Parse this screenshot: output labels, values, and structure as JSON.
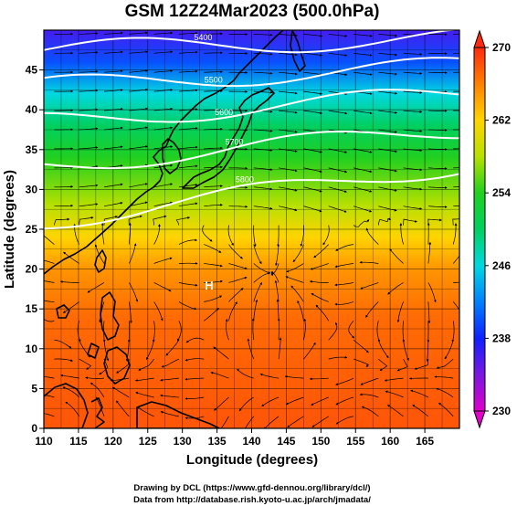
{
  "title": "GSM 12Z24Mar2023 (500.0hPa)",
  "x_axis": {
    "label": "Longitude (degrees)",
    "range": [
      110,
      170
    ],
    "ticks": [
      "110",
      "115",
      "120",
      "125",
      "130",
      "135",
      "140",
      "145",
      "150",
      "155",
      "160",
      "165"
    ]
  },
  "y_axis": {
    "label": "Latitude  (degrees)",
    "range": [
      0,
      50
    ],
    "ticks": [
      "0",
      "5",
      "10",
      "15",
      "20",
      "25",
      "30",
      "35",
      "40",
      "45"
    ]
  },
  "colorbar": {
    "range": [
      230,
      270
    ],
    "labels": [
      "270",
      "262",
      "254",
      "246",
      "238",
      "230"
    ],
    "stops": [
      {
        "v": 230,
        "c": "#e000c8"
      },
      {
        "v": 234,
        "c": "#7a18e0"
      },
      {
        "v": 238,
        "c": "#1020ff"
      },
      {
        "v": 242,
        "c": "#0080ff"
      },
      {
        "v": 246,
        "c": "#00d8e0"
      },
      {
        "v": 250,
        "c": "#00d060"
      },
      {
        "v": 254,
        "c": "#20d020"
      },
      {
        "v": 258,
        "c": "#b8e000"
      },
      {
        "v": 262,
        "c": "#ffd400"
      },
      {
        "v": 266,
        "c": "#ff8000"
      },
      {
        "v": 270,
        "c": "#ff2a10"
      }
    ]
  },
  "temperature_bands": [
    {
      "lat": 0,
      "v": 268
    },
    {
      "lat": 14,
      "v": 267
    },
    {
      "lat": 20,
      "v": 265
    },
    {
      "lat": 24,
      "v": 262
    },
    {
      "lat": 28,
      "v": 258
    },
    {
      "lat": 34,
      "v": 254
    },
    {
      "lat": 38,
      "v": 250
    },
    {
      "lat": 42,
      "v": 246
    },
    {
      "lat": 46,
      "v": 240
    },
    {
      "lat": 50,
      "v": 236
    }
  ],
  "height_contours": [
    {
      "label": "5400",
      "lat_west": 47.5,
      "lat_east": 49.0
    },
    {
      "label": "5500",
      "lat_west": 43.0,
      "lat_east": 45.5
    },
    {
      "label": "5600",
      "lat_west": 38.5,
      "lat_east": 42.0
    },
    {
      "label": "5700",
      "lat_west": 33.0,
      "lat_east": 37.5
    },
    {
      "label": "5800",
      "lat_west": 26.0,
      "lat_east": 33.0
    }
  ],
  "pressure_marker": "H",
  "credits": [
    "Drawing by DCL (https://www.gfd-dennou.org/library/dcl/)",
    "Data from http://database.rish.kyoto-u.ac.jp/arch/jmadata/"
  ]
}
